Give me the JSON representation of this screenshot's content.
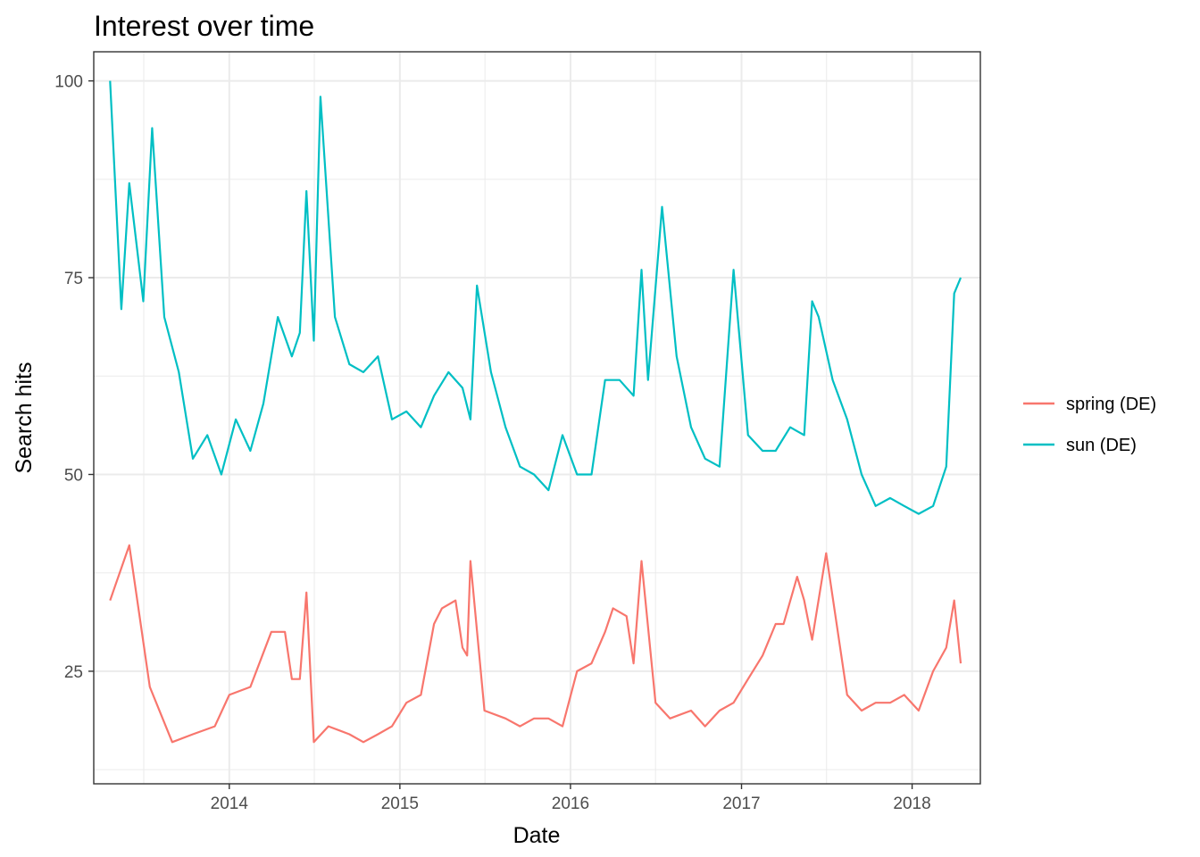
{
  "chart_data": {
    "type": "line",
    "title": "Interest over time",
    "xlabel": "Date",
    "ylabel": "Search hits",
    "xlim": [
      "2013-03-17",
      "2018-05-27"
    ],
    "ylim": [
      10.7,
      103.7
    ],
    "x_ticks": [
      "2014-01-01",
      "2015-01-01",
      "2016-01-01",
      "2017-01-01",
      "2018-01-01"
    ],
    "x_tick_labels": [
      "2014",
      "2015",
      "2016",
      "2017",
      "2018"
    ],
    "y_ticks": [
      25,
      50,
      75,
      100
    ],
    "grid": true,
    "legend_position": "right",
    "series": [
      {
        "name": "spring (DE)",
        "color": "#F8766D",
        "x": [
          "2013-04-21",
          "2013-06-01",
          "2013-07-15",
          "2013-09-01",
          "2013-10-15",
          "2013-12-01",
          "2014-01-01",
          "2014-02-15",
          "2014-04-01",
          "2014-04-30",
          "2014-05-15",
          "2014-06-01",
          "2014-06-15",
          "2014-07-01",
          "2014-08-01",
          "2014-09-15",
          "2014-10-15",
          "2014-11-15",
          "2014-12-15",
          "2015-01-15",
          "2015-02-15",
          "2015-03-15",
          "2015-04-01",
          "2015-04-30",
          "2015-05-15",
          "2015-05-25",
          "2015-06-01",
          "2015-07-01",
          "2015-08-15",
          "2015-09-15",
          "2015-10-15",
          "2015-11-15",
          "2015-12-15",
          "2016-01-15",
          "2016-02-15",
          "2016-03-15",
          "2016-04-01",
          "2016-04-30",
          "2016-05-15",
          "2016-06-01",
          "2016-07-01",
          "2016-08-01",
          "2016-09-15",
          "2016-10-15",
          "2016-11-15",
          "2016-12-15",
          "2017-01-15",
          "2017-02-15",
          "2017-03-15",
          "2017-04-01",
          "2017-04-30",
          "2017-05-15",
          "2017-05-25",
          "2017-06-01",
          "2017-07-01",
          "2017-08-15",
          "2017-09-15",
          "2017-10-15",
          "2017-11-15",
          "2017-12-15",
          "2018-01-15",
          "2018-02-15",
          "2018-03-15",
          "2018-04-01",
          "2018-04-15"
        ],
        "y": [
          34,
          41,
          23,
          16,
          17,
          18,
          22,
          23,
          30,
          30,
          24,
          24,
          35,
          16,
          18,
          17,
          16,
          17,
          18,
          21,
          22,
          31,
          33,
          34,
          28,
          27,
          39,
          20,
          19,
          18,
          19,
          19,
          18,
          25,
          26,
          30,
          33,
          32,
          26,
          39,
          21,
          19,
          20,
          18,
          20,
          21,
          24,
          27,
          31,
          31,
          37,
          34,
          31,
          29,
          40,
          22,
          20,
          21,
          21,
          22,
          20,
          25,
          28,
          34,
          26
        ]
      },
      {
        "name": "sun (DE)",
        "color": "#00BFC4",
        "x": [
          "2013-04-21",
          "2013-05-15",
          "2013-06-01",
          "2013-07-01",
          "2013-07-20",
          "2013-08-15",
          "2013-09-15",
          "2013-10-15",
          "2013-11-15",
          "2013-12-15",
          "2014-01-15",
          "2014-02-15",
          "2014-03-15",
          "2014-04-15",
          "2014-05-15",
          "2014-06-01",
          "2014-06-15",
          "2014-07-01",
          "2014-07-15",
          "2014-08-15",
          "2014-09-15",
          "2014-10-15",
          "2014-11-15",
          "2014-12-15",
          "2015-01-15",
          "2015-02-15",
          "2015-03-15",
          "2015-04-15",
          "2015-05-15",
          "2015-06-01",
          "2015-06-15",
          "2015-07-15",
          "2015-08-15",
          "2015-09-15",
          "2015-10-15",
          "2015-11-15",
          "2015-12-15",
          "2016-01-15",
          "2016-02-15",
          "2016-03-15",
          "2016-04-15",
          "2016-05-15",
          "2016-06-01",
          "2016-06-15",
          "2016-07-15",
          "2016-08-15",
          "2016-09-15",
          "2016-10-15",
          "2016-11-15",
          "2016-12-15",
          "2017-01-15",
          "2017-02-15",
          "2017-03-15",
          "2017-04-15",
          "2017-05-15",
          "2017-06-01",
          "2017-06-15",
          "2017-07-15",
          "2017-08-15",
          "2017-09-15",
          "2017-10-15",
          "2017-11-15",
          "2017-12-15",
          "2018-01-15",
          "2018-02-15",
          "2018-03-15",
          "2018-04-01",
          "2018-04-15"
        ],
        "y": [
          100,
          71,
          87,
          72,
          94,
          70,
          63,
          52,
          55,
          50,
          57,
          53,
          59,
          70,
          65,
          68,
          86,
          67,
          98,
          70,
          64,
          63,
          65,
          57,
          58,
          56,
          60,
          63,
          61,
          57,
          74,
          63,
          56,
          51,
          50,
          48,
          55,
          50,
          50,
          62,
          62,
          60,
          76,
          62,
          84,
          65,
          56,
          52,
          51,
          76,
          55,
          53,
          53,
          56,
          55,
          72,
          70,
          62,
          57,
          50,
          46,
          47,
          46,
          45,
          46,
          51,
          73,
          75
        ]
      }
    ]
  }
}
